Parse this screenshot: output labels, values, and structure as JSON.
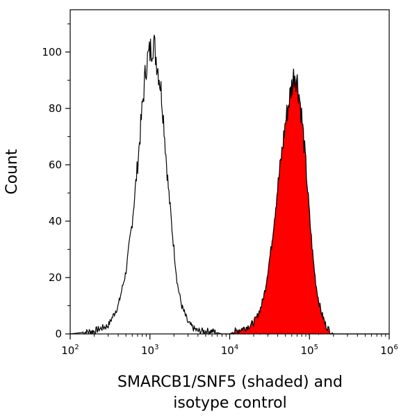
{
  "chart_data": {
    "type": "histogram",
    "title": "",
    "ylabel": "Count",
    "xlabel_lines": [
      "SMARCB1/SNF5 (shaded) and",
      "isotype control"
    ],
    "xscale": "log",
    "xlim": [
      100,
      1000000
    ],
    "ylim": [
      0,
      115
    ],
    "x_ticks": [
      {
        "value": 100,
        "base": "10",
        "exp": "2"
      },
      {
        "value": 1000,
        "base": "10",
        "exp": "3"
      },
      {
        "value": 10000,
        "base": "10",
        "exp": "4"
      },
      {
        "value": 100000,
        "base": "10",
        "exp": "5"
      },
      {
        "value": 1000000,
        "base": "10",
        "exp": "6"
      }
    ],
    "y_ticks": [
      "0",
      "20",
      "40",
      "60",
      "80",
      "100"
    ],
    "series": [
      {
        "name": "isotype control",
        "style": "outline",
        "color": "#000000",
        "x": [
          100,
          200,
          300,
          400,
          500,
          600,
          700,
          800,
          900,
          1000,
          1100,
          1200,
          1300,
          1400,
          1500,
          1600,
          1700,
          1800,
          2000,
          2200,
          2500,
          3000,
          3500,
          4000,
          5000,
          6000,
          8000,
          10000,
          20000,
          50000,
          100000,
          200000,
          1000000
        ],
        "values": [
          0,
          1,
          3,
          10,
          22,
          40,
          60,
          80,
          96,
          100,
          104,
          98,
          92,
          85,
          74,
          62,
          52,
          44,
          30,
          18,
          10,
          4,
          2,
          1,
          1,
          1,
          0,
          0,
          1,
          0,
          1,
          0,
          0
        ]
      },
      {
        "name": "SMARCB1/SNF5",
        "style": "filled",
        "color": "#ff0000",
        "x": [
          10000,
          12000,
          15000,
          18000,
          20000,
          22000,
          25000,
          28000,
          30000,
          33000,
          36000,
          40000,
          45000,
          50000,
          55000,
          60000,
          65000,
          70000,
          75000,
          80000,
          90000,
          100000,
          110000,
          120000,
          130000,
          140000,
          160000,
          180000,
          200000
        ],
        "values": [
          0,
          1,
          2,
          3,
          4,
          6,
          10,
          16,
          22,
          30,
          40,
          52,
          64,
          75,
          82,
          88,
          93,
          90,
          84,
          77,
          60,
          42,
          28,
          18,
          12,
          8,
          3,
          1,
          0
        ]
      }
    ]
  }
}
